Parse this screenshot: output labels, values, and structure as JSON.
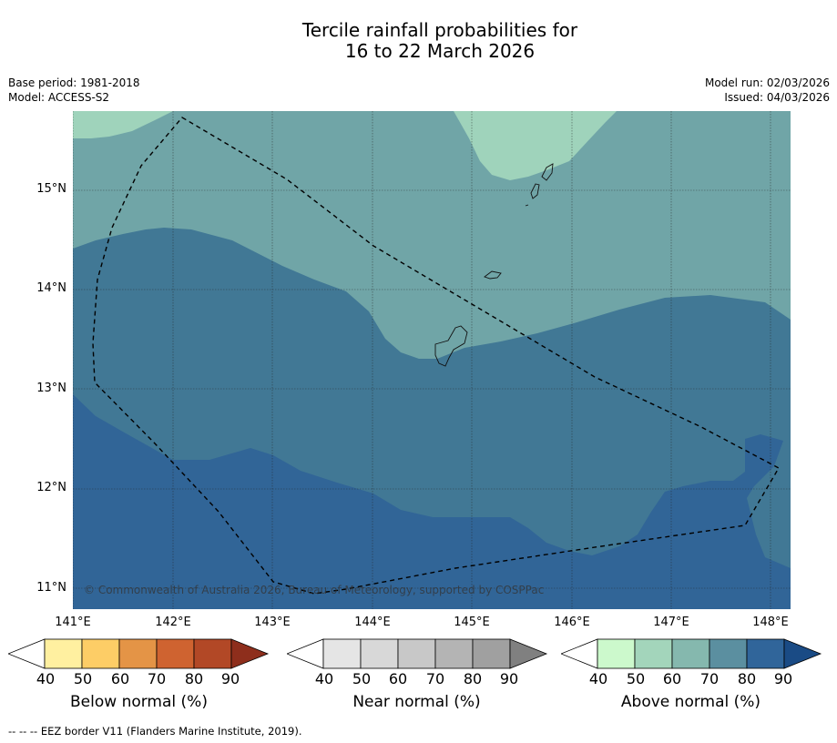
{
  "title_line1": "Tercile rainfall probabilities for",
  "title_line2": "16 to 22 March 2026",
  "base_period": "Base period: 1981-2018",
  "model": "Model: ACCESS-S2",
  "model_run": "Model run: 02/03/2026",
  "issued": "Issued: 04/03/2026",
  "copyright": "© Commonwealth of Australia 2026, Bureau of Meteorology, supported by COSPPac",
  "lat_labels": [
    "15°N",
    "14°N",
    "13°N",
    "12°N",
    "11°N"
  ],
  "lon_labels": [
    "141°E",
    "142°E",
    "143°E",
    "144°E",
    "145°E",
    "146°E",
    "147°E",
    "148°E"
  ],
  "colorbars": [
    {
      "title": "Below normal (%)",
      "ticks": [
        "40",
        "50",
        "60",
        "70",
        "80",
        "90"
      ],
      "colors": [
        "#fff0a0",
        "#fdcd66",
        "#e49446",
        "#cf6330",
        "#b24826",
        "#8e2e1c"
      ]
    },
    {
      "title": "Near normal (%)",
      "ticks": [
        "40",
        "50",
        "60",
        "70",
        "80",
        "90"
      ],
      "colors": [
        "#e5e5e5",
        "#d8d8d8",
        "#c8c8c8",
        "#b4b4b4",
        "#a0a0a0",
        "#808080"
      ]
    },
    {
      "title": "Above normal (%)",
      "ticks": [
        "40",
        "50",
        "60",
        "70",
        "80",
        "90"
      ],
      "colors": [
        "#ccf9cc",
        "#a3d5bb",
        "#85b8ae",
        "#5b8fa0",
        "#30659a",
        "#1a4b85"
      ]
    }
  ],
  "map_colors": {
    "above_50_60": "#9fd3bb",
    "above_60_70": "#70a5a7",
    "above_70_80": "#417895",
    "above_80_90": "#316597"
  },
  "footnote": "--  --  -- EEZ border V11 (Flanders Marine Institute, 2019)."
}
